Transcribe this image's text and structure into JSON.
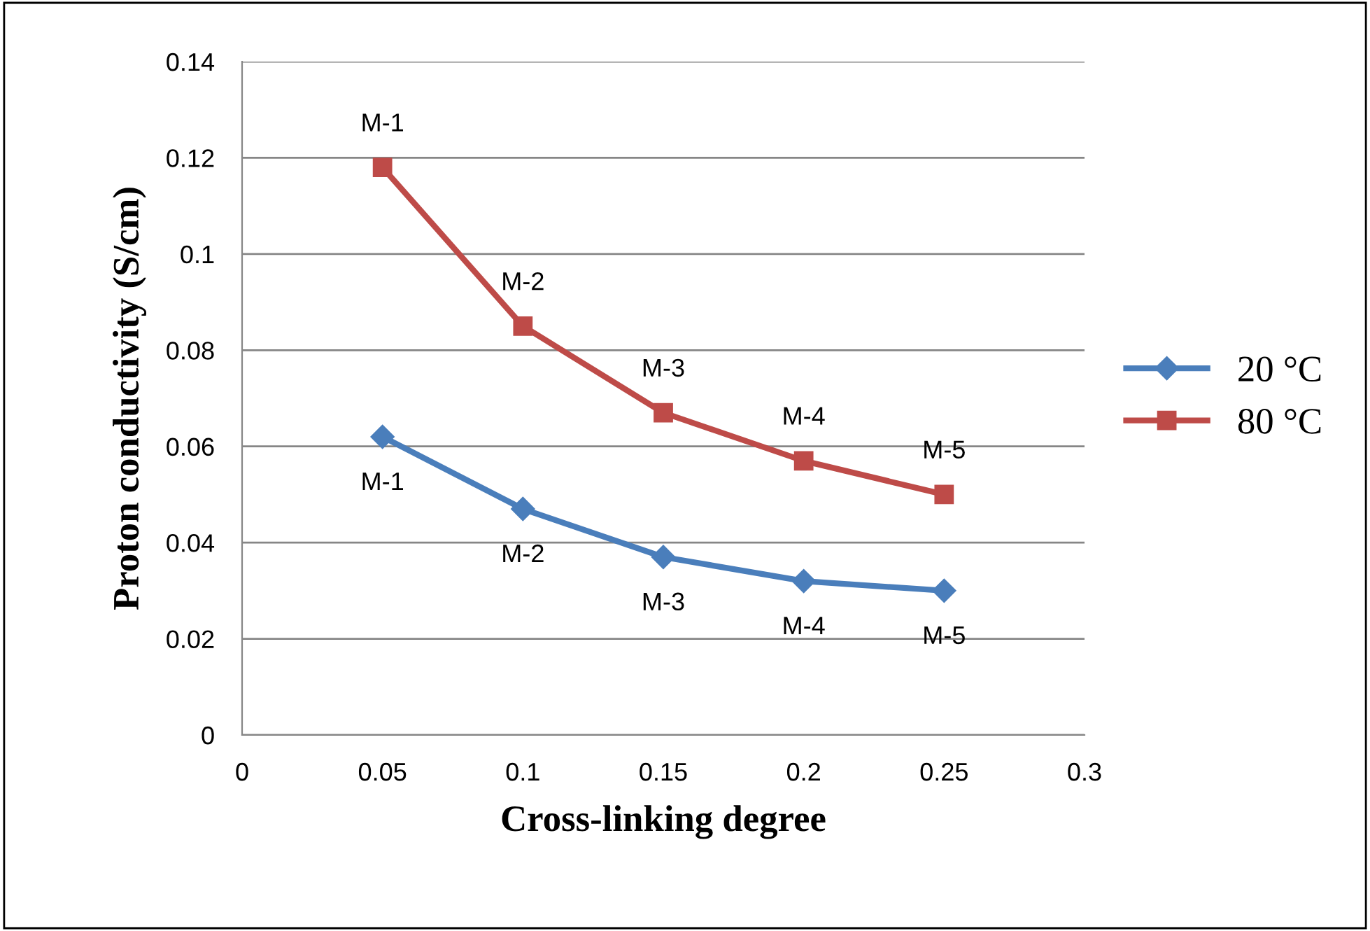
{
  "chart_data": {
    "type": "line",
    "xlabel": "Cross-linking degree",
    "ylabel": "Proton conductivity (S/cm)",
    "x": [
      0.05,
      0.1,
      0.15,
      0.2,
      0.25
    ],
    "series": [
      {
        "name": "20 °C",
        "color": "#4a7ebb",
        "marker": "diamond",
        "values": [
          0.062,
          0.047,
          0.037,
          0.032,
          0.03
        ]
      },
      {
        "name": "80 °C",
        "color": "#be4b48",
        "marker": "square",
        "values": [
          0.118,
          0.085,
          0.067,
          0.057,
          0.05
        ]
      }
    ],
    "xlim": [
      0,
      0.3
    ],
    "xticks": [
      0,
      0.05,
      0.1,
      0.15,
      0.2,
      0.25,
      0.3
    ],
    "ylim": [
      0,
      0.14
    ],
    "yticks": [
      0,
      0.02,
      0.04,
      0.06,
      0.08,
      0.1,
      0.12,
      0.14
    ],
    "grid": "y",
    "legend": "right",
    "annotations": [
      {
        "text": "M-1",
        "x": 0.05,
        "y": 0.062
      },
      {
        "text": "M-2",
        "x": 0.1,
        "y": 0.047
      },
      {
        "text": "M-3",
        "x": 0.15,
        "y": 0.037
      },
      {
        "text": "M-4",
        "x": 0.2,
        "y": 0.032
      },
      {
        "text": "M-5",
        "x": 0.25,
        "y": 0.03
      },
      {
        "text": "M-1",
        "x": 0.05,
        "y": 0.118
      },
      {
        "text": "M-2",
        "x": 0.1,
        "y": 0.085
      },
      {
        "text": "M-3",
        "x": 0.15,
        "y": 0.067
      },
      {
        "text": "M-4",
        "x": 0.2,
        "y": 0.057
      },
      {
        "text": "M-5",
        "x": 0.25,
        "y": 0.05
      }
    ]
  }
}
